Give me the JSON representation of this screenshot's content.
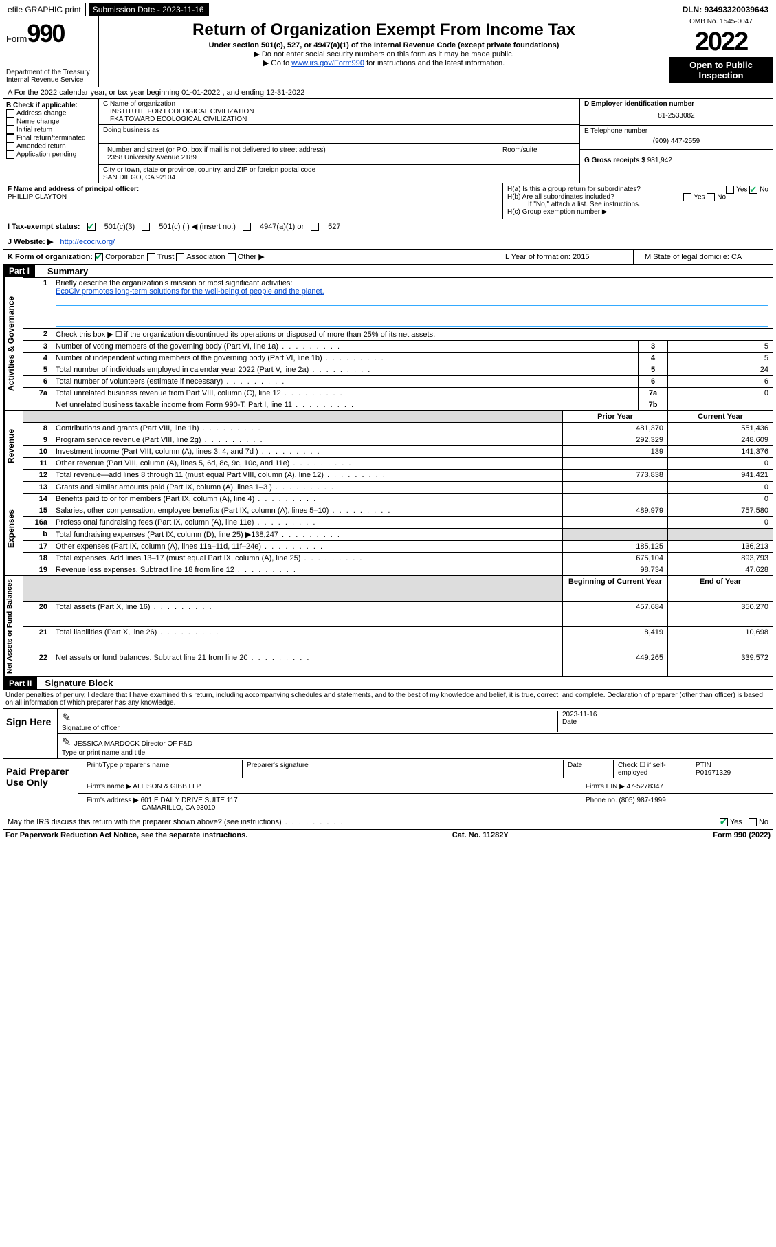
{
  "topbar": {
    "efile": "efile GRAPHIC print",
    "submission_label": "Submission Date - 2023-11-16",
    "dln": "DLN: 93493320039643"
  },
  "header": {
    "form": "Form",
    "form_num": "990",
    "title": "Return of Organization Exempt From Income Tax",
    "subtitle": "Under section 501(c), 527, or 4947(a)(1) of the Internal Revenue Code (except private foundations)",
    "hint1": "▶ Do not enter social security numbers on this form as it may be made public.",
    "hint2_pre": "▶ Go to ",
    "hint2_link": "www.irs.gov/Form990",
    "hint2_post": " for instructions and the latest information.",
    "dept": "Department of the Treasury",
    "irs": "Internal Revenue Service",
    "omb": "OMB No. 1545-0047",
    "year": "2022",
    "open": "Open to Public Inspection"
  },
  "rowA": "A For the 2022 calendar year, or tax year beginning 01-01-2022   , and ending 12-31-2022",
  "colB": {
    "label": "B Check if applicable:",
    "items": [
      "Address change",
      "Name change",
      "Initial return",
      "Final return/terminated",
      "Amended return",
      "Application pending"
    ]
  },
  "colC": {
    "name_label": "C Name of organization",
    "name": "INSTITUTE FOR ECOLOGICAL CIVILIZATION",
    "fka": "FKA TOWARD ECOLOGICAL CIVILIZATION",
    "dba_label": "Doing business as",
    "street_label": "Number and street (or P.O. box if mail is not delivered to street address)",
    "room_label": "Room/suite",
    "street": "2358 University Avenue 2189",
    "city_label": "City or town, state or province, country, and ZIP or foreign postal code",
    "city": "SAN DIEGO, CA  92104"
  },
  "colD": {
    "label": "D Employer identification number",
    "ein": "81-2533082",
    "e_label": "E Telephone number",
    "phone": "(909) 447-2559",
    "g_label": "G Gross receipts $",
    "gross": "981,942"
  },
  "rowF": {
    "label": "F Name and address of principal officer:",
    "name": "PHILLIP CLAYTON"
  },
  "rowH": {
    "ha": "H(a) Is this a group return for subordinates?",
    "hb": "H(b) Are all subordinates included?",
    "hb_note": "If \"No,\" attach a list. See instructions.",
    "hc": "H(c) Group exemption number ▶",
    "yes": "Yes",
    "no": "No"
  },
  "rowI": {
    "label": "I    Tax-exempt status:",
    "opt1": "501(c)(3)",
    "opt2": "501(c) (   ) ◀ (insert no.)",
    "opt3": "4947(a)(1) or",
    "opt4": "527"
  },
  "rowJ": {
    "label": "J    Website: ▶",
    "url": "http://ecociv.org/"
  },
  "rowK": {
    "label": "K Form of organization:",
    "opts": [
      "Corporation",
      "Trust",
      "Association",
      "Other ▶"
    ],
    "l": "L Year of formation: 2015",
    "m": "M State of legal domicile: CA"
  },
  "part1": {
    "header": "Part I",
    "title": "Summary"
  },
  "summary": {
    "q1_label": "Briefly describe the organization's mission or most significant activities:",
    "q1_text": "EcoCiv promotes long-term solutions for the well-being of people and the planet.",
    "q2": "Check this box ▶ ☐ if the organization discontinued its operations or disposed of more than 25% of its net assets.",
    "rows_ag": [
      {
        "n": "3",
        "desc": "Number of voting members of the governing body (Part VI, line 1a)",
        "box": "3",
        "val": "5"
      },
      {
        "n": "4",
        "desc": "Number of independent voting members of the governing body (Part VI, line 1b)",
        "box": "4",
        "val": "5"
      },
      {
        "n": "5",
        "desc": "Total number of individuals employed in calendar year 2022 (Part V, line 2a)",
        "box": "5",
        "val": "24"
      },
      {
        "n": "6",
        "desc": "Total number of volunteers (estimate if necessary)",
        "box": "6",
        "val": "6"
      },
      {
        "n": "7a",
        "desc": "Total unrelated business revenue from Part VIII, column (C), line 12",
        "box": "7a",
        "val": "0"
      },
      {
        "n": "",
        "desc": "Net unrelated business taxable income from Form 990-T, Part I, line 11",
        "box": "7b",
        "val": ""
      }
    ],
    "col_prior": "Prior Year",
    "col_current": "Current Year",
    "rows_rev": [
      {
        "n": "8",
        "desc": "Contributions and grants (Part VIII, line 1h)",
        "prior": "481,370",
        "curr": "551,436"
      },
      {
        "n": "9",
        "desc": "Program service revenue (Part VIII, line 2g)",
        "prior": "292,329",
        "curr": "248,609"
      },
      {
        "n": "10",
        "desc": "Investment income (Part VIII, column (A), lines 3, 4, and 7d )",
        "prior": "139",
        "curr": "141,376"
      },
      {
        "n": "11",
        "desc": "Other revenue (Part VIII, column (A), lines 5, 6d, 8c, 9c, 10c, and 11e)",
        "prior": "",
        "curr": "0"
      },
      {
        "n": "12",
        "desc": "Total revenue—add lines 8 through 11 (must equal Part VIII, column (A), line 12)",
        "prior": "773,838",
        "curr": "941,421"
      }
    ],
    "rows_exp": [
      {
        "n": "13",
        "desc": "Grants and similar amounts paid (Part IX, column (A), lines 1–3 )",
        "prior": "",
        "curr": "0"
      },
      {
        "n": "14",
        "desc": "Benefits paid to or for members (Part IX, column (A), line 4)",
        "prior": "",
        "curr": "0"
      },
      {
        "n": "15",
        "desc": "Salaries, other compensation, employee benefits (Part IX, column (A), lines 5–10)",
        "prior": "489,979",
        "curr": "757,580"
      },
      {
        "n": "16a",
        "desc": "Professional fundraising fees (Part IX, column (A), line 11e)",
        "prior": "",
        "curr": "0"
      },
      {
        "n": "b",
        "desc": "Total fundraising expenses (Part IX, column (D), line 25) ▶138,247",
        "prior": "grey",
        "curr": "grey"
      },
      {
        "n": "17",
        "desc": "Other expenses (Part IX, column (A), lines 11a–11d, 11f–24e)",
        "prior": "185,125",
        "curr": "136,213"
      },
      {
        "n": "18",
        "desc": "Total expenses. Add lines 13–17 (must equal Part IX, column (A), line 25)",
        "prior": "675,104",
        "curr": "893,793"
      },
      {
        "n": "19",
        "desc": "Revenue less expenses. Subtract line 18 from line 12",
        "prior": "98,734",
        "curr": "47,628"
      }
    ],
    "col_begin": "Beginning of Current Year",
    "col_end": "End of Year",
    "rows_net": [
      {
        "n": "20",
        "desc": "Total assets (Part X, line 16)",
        "prior": "457,684",
        "curr": "350,270"
      },
      {
        "n": "21",
        "desc": "Total liabilities (Part X, line 26)",
        "prior": "8,419",
        "curr": "10,698"
      },
      {
        "n": "22",
        "desc": "Net assets or fund balances. Subtract line 21 from line 20",
        "prior": "449,265",
        "curr": "339,572"
      }
    ]
  },
  "part2": {
    "header": "Part II",
    "title": "Signature Block",
    "declaration": "Under penalties of perjury, I declare that I have examined this return, including accompanying schedules and statements, and to the best of my knowledge and belief, it is true, correct, and complete. Declaration of preparer (other than officer) is based on all information of which preparer has any knowledge."
  },
  "sign": {
    "label": "Sign Here",
    "sig_officer": "Signature of officer",
    "date_label": "Date",
    "date": "2023-11-16",
    "name": "JESSICA MARDOCK Director OF F&D",
    "name_label": "Type or print name and title"
  },
  "preparer": {
    "label": "Paid Preparer Use Only",
    "print_label": "Print/Type preparer's name",
    "sig_label": "Preparer's signature",
    "date_label": "Date",
    "check_label": "Check ☐ if self-employed",
    "ptin_label": "PTIN",
    "ptin": "P01971329",
    "firm_name_label": "Firm's name    ▶",
    "firm_name": "ALLISON & GIBB LLP",
    "firm_ein_label": "Firm's EIN ▶",
    "firm_ein": "47-5278347",
    "firm_addr_label": "Firm's address ▶",
    "firm_addr": "601 E DAILY DRIVE SUITE 117",
    "firm_city": "CAMARILLO, CA  93010",
    "phone_label": "Phone no.",
    "phone": "(805) 987-1999"
  },
  "discuss": {
    "q": "May the IRS discuss this return with the preparer shown above? (see instructions)",
    "yes": "Yes",
    "no": "No"
  },
  "footer": {
    "left": "For Paperwork Reduction Act Notice, see the separate instructions.",
    "mid": "Cat. No. 11282Y",
    "right": "Form 990 (2022)"
  },
  "vert": {
    "ag": "Activities & Governance",
    "rev": "Revenue",
    "exp": "Expenses",
    "net": "Net Assets or Fund Balances"
  }
}
